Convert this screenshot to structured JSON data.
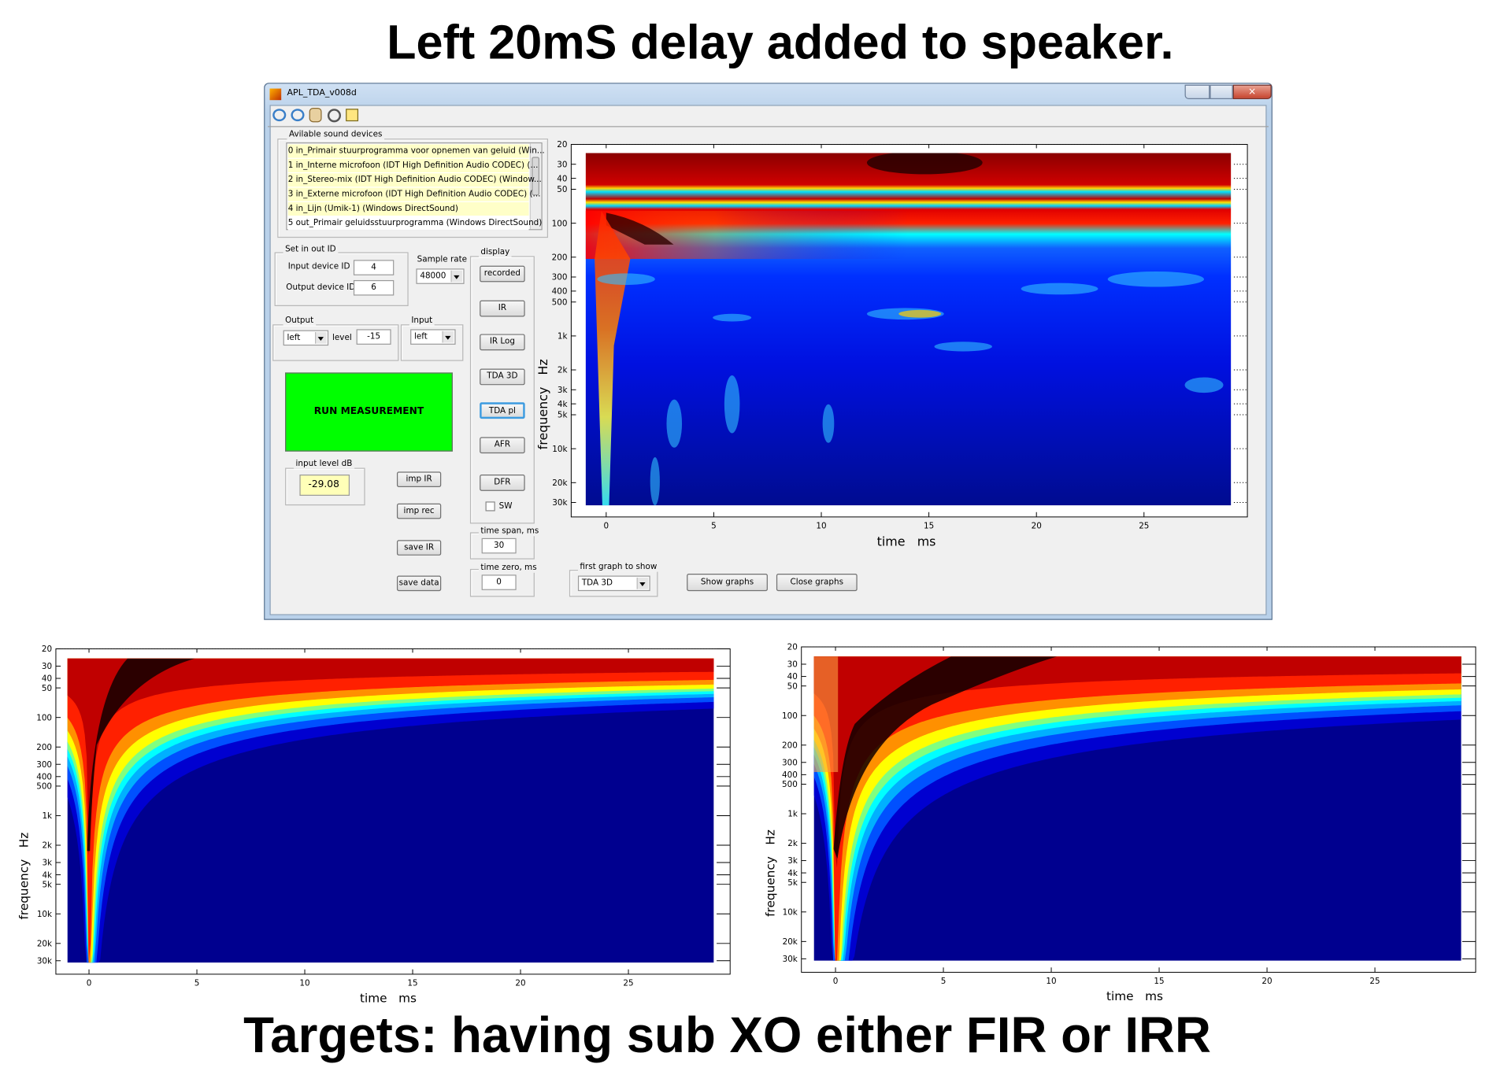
{
  "title": "Left 20mS delay added to speaker.",
  "footer": "Targets: having sub XO either FIR or IRR",
  "window": {
    "title": "APL_TDA_v008d",
    "devices": {
      "label": "Avilable sound devices",
      "items": [
        "0 in_Primair stuurprogramma voor opnemen van geluid (Win...",
        "1 in_Interne microfoon (IDT High Definition Audio CODEC) (...",
        "2 in_Stereo-mix (IDT High Definition Audio CODEC) (Window...",
        "3 in_Externe microfoon (IDT High Definition Audio CODEC) (...",
        "4 in_Lijn (Umik-1) (Windows DirectSound)",
        "5 out_Primair geluidsstuurprogramma (Windows DirectSound)"
      ]
    },
    "set_io": {
      "label": "Set in out ID",
      "input_label": "Input device ID",
      "input_value": "4",
      "output_label": "Output device ID",
      "output_value": "6"
    },
    "sample_rate": {
      "label": "Sample rate",
      "value": "48000"
    },
    "output": {
      "label": "Output",
      "channel": "left",
      "level_label": "level",
      "level": "-15"
    },
    "input": {
      "label": "Input",
      "channel": "left"
    },
    "run": "RUN MEASUREMENT",
    "input_level": {
      "label": "input level dB",
      "value": "-29.08"
    },
    "buttons": [
      "imp IR",
      "imp rec",
      "save IR",
      "save data"
    ],
    "display": {
      "label": "display",
      "buttons": [
        "recorded",
        "IR",
        "IR Log",
        "TDA 3D",
        "TDA pl",
        "AFR",
        "DFR"
      ],
      "checkbox": "SW"
    },
    "time_span": {
      "label": "time span, ms",
      "value": "30"
    },
    "time_zero": {
      "label": "time zero, ms",
      "value": "0"
    },
    "first_graph": {
      "label": "first graph to show",
      "value": "TDA 3D"
    },
    "show_graphs": "Show graphs",
    "close_graphs": "Close graphs"
  },
  "plots": [
    {
      "xlabel": "time   ms",
      "ylabel": "frequency   Hz",
      "xlim": [
        -1,
        29
      ],
      "ylim": [
        20,
        30000
      ],
      "yscale": "log",
      "xticks": [
        0,
        5,
        10,
        15,
        20,
        25
      ],
      "yticks": [
        20,
        30,
        40,
        50,
        100,
        200,
        300,
        400,
        500,
        {
          "value": 1000,
          "label": "1k"
        },
        {
          "value": 2000,
          "label": "2k"
        },
        {
          "value": 3000,
          "label": "3k"
        },
        {
          "value": 4000,
          "label": "4k"
        },
        {
          "value": 5000,
          "label": "5k"
        },
        {
          "value": 10000,
          "label": "10k"
        },
        {
          "value": 20000,
          "label": "20k"
        },
        {
          "value": 30000,
          "label": "30k"
        }
      ]
    },
    {
      "xlabel": "time   ms",
      "ylabel": "frequency   Hz",
      "xlim": [
        -1,
        29
      ],
      "ylim": [
        20,
        30000
      ],
      "yscale": "log",
      "xticks": [
        0,
        5,
        10,
        15,
        20,
        25
      ],
      "yticks": [
        20,
        30,
        40,
        50,
        100,
        200,
        300,
        400,
        500,
        {
          "value": 1000,
          "label": "1k"
        },
        {
          "value": 2000,
          "label": "2k"
        },
        {
          "value": 3000,
          "label": "3k"
        },
        {
          "value": 4000,
          "label": "4k"
        },
        {
          "value": 5000,
          "label": "5k"
        },
        {
          "value": 10000,
          "label": "10k"
        },
        {
          "value": 20000,
          "label": "20k"
        },
        {
          "value": 30000,
          "label": "30k"
        }
      ]
    },
    {
      "xlabel": "time   ms",
      "ylabel": "frequency   Hz",
      "xlim": [
        -1,
        29
      ],
      "ylim": [
        20,
        30000
      ],
      "yscale": "log",
      "xticks": [
        0,
        5,
        10,
        15,
        20,
        25
      ],
      "yticks": [
        20,
        30,
        40,
        50,
        100,
        200,
        300,
        400,
        500,
        {
          "value": 1000,
          "label": "1k"
        },
        {
          "value": 2000,
          "label": "2k"
        },
        {
          "value": 3000,
          "label": "3k"
        },
        {
          "value": 4000,
          "label": "4k"
        },
        {
          "value": 5000,
          "label": "5k"
        },
        {
          "value": 10000,
          "label": "10k"
        },
        {
          "value": 20000,
          "label": "20k"
        },
        {
          "value": 30000,
          "label": "30k"
        }
      ]
    }
  ]
}
